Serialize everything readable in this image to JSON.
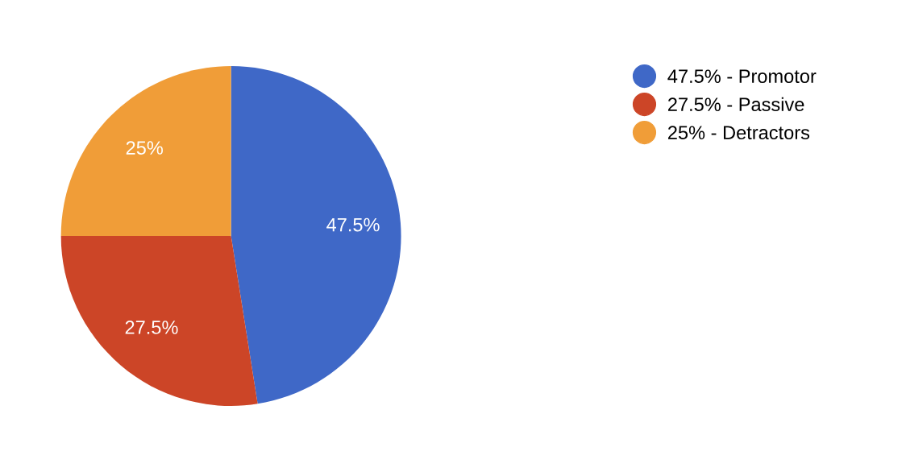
{
  "chart_data": {
    "type": "pie",
    "categories": [
      "47.5% - Promotor",
      "27.5% - Passive",
      "25% - Detractors"
    ],
    "values": [
      47.5,
      27.5,
      25
    ],
    "colors": [
      "#3f68c7",
      "#cc4527",
      "#f09d38"
    ],
    "value_labels": [
      "47.5%",
      "27.5%",
      "25%"
    ],
    "legend": "top right"
  }
}
